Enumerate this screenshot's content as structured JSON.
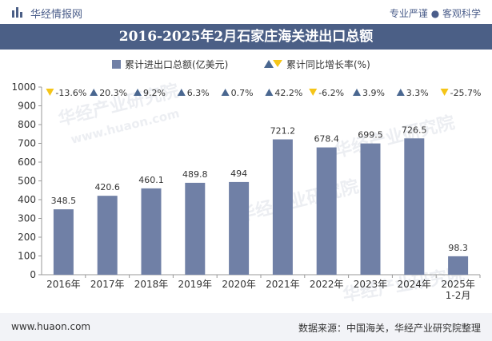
{
  "header": {
    "brand": "华经情报网",
    "tagline": "专业严谨 ● 客观科学",
    "logo_icon": "bar-logo-icon"
  },
  "title": "2016-2025年2月石家庄海关进出口总额",
  "legend": {
    "bar_label": "累计进出口总额(亿美元)",
    "growth_label": "累计同比增长率(%)"
  },
  "footer": {
    "left": "www.huaon.com",
    "right": "数据来源：中国海关，华经产业研究院整理"
  },
  "watermark": {
    "text": "华经产业研究院",
    "url": "www.huaon.com"
  },
  "colors": {
    "bar": "#7080a6",
    "title_bg": "#4b5f86",
    "up": "#4a6790",
    "down": "#f5c518",
    "grid": "#e6e6e6"
  },
  "chart_data": {
    "type": "bar",
    "categories": [
      "2016年",
      "2017年",
      "2018年",
      "2019年",
      "2020年",
      "2021年",
      "2022年",
      "2023年",
      "2024年",
      "2025年\n1-2月"
    ],
    "series": [
      {
        "name": "累计进出口总额(亿美元)",
        "values": [
          348.5,
          420.6,
          460.1,
          489.8,
          494,
          721.2,
          678.4,
          699.5,
          726.5,
          98.3
        ]
      }
    ],
    "value_labels": [
      "348.5",
      "420.6",
      "460.1",
      "489.8",
      "494",
      "721.2",
      "678.4",
      "699.5",
      "726.5",
      "98.3"
    ],
    "growth": {
      "name": "累计同比增长率(%)",
      "values": [
        -13.6,
        20.3,
        9.2,
        6.3,
        0.7,
        42.2,
        -6.2,
        3.9,
        3.3,
        -25.7
      ],
      "labels": [
        "-13.6%",
        "20.3%",
        "9.2%",
        "6.3%",
        "0.7%",
        "42.2%",
        "-6.2%",
        "3.9%",
        "3.3%",
        "-25.7%"
      ]
    },
    "ylim": [
      0,
      1000
    ],
    "yticks": [
      "0",
      "100",
      "200",
      "300",
      "400",
      "500",
      "600",
      "700",
      "800",
      "900",
      "1000"
    ],
    "legend_position": "top-center",
    "grid": false
  }
}
